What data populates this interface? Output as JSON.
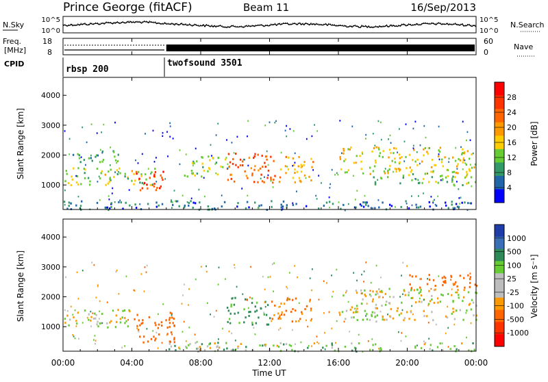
{
  "header": {
    "station": "Prince George (fitACF)",
    "beam": "Beam 11",
    "date": "16/Sep/2013"
  },
  "top_panel": {
    "left_label": "N.Sky",
    "right_label": "N.Search",
    "left_ticks": [
      "10^5",
      "10^0"
    ],
    "right_ticks": [
      "10^5",
      "10^0"
    ]
  },
  "freq_panel": {
    "left_label_1": "Freq.",
    "left_label_2": "[MHz]",
    "left_ticks": [
      "18",
      "8"
    ],
    "right_label": "Nave",
    "right_ticks": [
      "60",
      "0"
    ]
  },
  "cpid": {
    "label": "CPID",
    "modes": [
      {
        "name": "rbsp 200",
        "start_hour": 0,
        "end_hour": 6
      },
      {
        "name": "twofsound 3501",
        "start_hour": 6,
        "end_hour": 24
      }
    ]
  },
  "power_panel": {
    "ylabel": "Slant Range [km]",
    "yticks": [
      "4000",
      "3000",
      "2000",
      "1000"
    ],
    "colorbar_label": "Power [dB]",
    "colorbar_ticks": [
      "28",
      "24",
      "20",
      "16",
      "12",
      "8",
      "4"
    ],
    "colors": [
      "#ff0000",
      "#ff3300",
      "#ff6600",
      "#ff9900",
      "#ffcc00",
      "#66cc33",
      "#339966",
      "#2266aa",
      "#0000ff"
    ]
  },
  "velocity_panel": {
    "ylabel": "Slant Range [km]",
    "yticks": [
      "4000",
      "3000",
      "2000",
      "1000"
    ],
    "colorbar_label": "Velocity [m s⁻¹]",
    "colorbar_ticks": [
      "1000",
      "500",
      "100",
      "25",
      "-25",
      "-100",
      "-500",
      "-1000"
    ],
    "colors": [
      "#1e3da8",
      "#3a6fb8",
      "#2e8b57",
      "#66cc33",
      "#bdbdbd",
      "#bdbdbd",
      "#ff9900",
      "#ff6600",
      "#ff3300",
      "#ff0000"
    ]
  },
  "xaxis": {
    "label": "Time UT",
    "ticks": [
      "00:00",
      "04:00",
      "08:00",
      "12:00",
      "16:00",
      "20:00",
      "00:00"
    ]
  },
  "chart_data": {
    "type": "heatmap",
    "x_range_hours": [
      0,
      24
    ],
    "y_range_km": [
      180,
      4600
    ],
    "power_clusters": [
      {
        "t0": 0,
        "t1": 5.5,
        "r0": 1000,
        "r1": 1600,
        "power": 14
      },
      {
        "t0": 0.5,
        "t1": 3.5,
        "r0": 1800,
        "r1": 2200,
        "power": 10
      },
      {
        "t0": 4.2,
        "t1": 5.8,
        "r0": 700,
        "r1": 1500,
        "power": 26
      },
      {
        "t0": 9.5,
        "t1": 12.5,
        "r0": 1100,
        "r1": 2100,
        "power": 24
      },
      {
        "t0": 7,
        "t1": 9.5,
        "r0": 1300,
        "r1": 2000,
        "power": 14
      },
      {
        "t0": 12.5,
        "t1": 14.5,
        "r0": 1100,
        "r1": 2000,
        "power": 18
      },
      {
        "t0": 16,
        "t1": 24,
        "r0": 1400,
        "r1": 2300,
        "power": 16
      },
      {
        "t0": 18,
        "t1": 24,
        "r0": 1000,
        "r1": 1400,
        "power": 12
      },
      {
        "t0": 0,
        "t1": 24,
        "r0": 200,
        "r1": 500,
        "power": 6
      }
    ],
    "velocity_clusters": [
      {
        "t0": 0,
        "t1": 4,
        "r0": 1000,
        "r1": 1600,
        "velocity": 0
      },
      {
        "t0": 4,
        "t1": 6.5,
        "r0": 500,
        "r1": 1500,
        "velocity": -300
      },
      {
        "t0": 9.5,
        "t1": 12,
        "r0": 1100,
        "r1": 2000,
        "velocity": 150
      },
      {
        "t0": 12,
        "t1": 14.5,
        "r0": 1200,
        "r1": 2000,
        "velocity": -150
      },
      {
        "t0": 16,
        "t1": 24,
        "r0": 1200,
        "r1": 2300,
        "velocity": 0
      },
      {
        "t0": 20,
        "t1": 24,
        "r0": 2300,
        "r1": 2800,
        "velocity": -200
      },
      {
        "t0": 6,
        "t1": 24,
        "r0": 200,
        "r1": 500,
        "velocity": 50
      }
    ]
  }
}
